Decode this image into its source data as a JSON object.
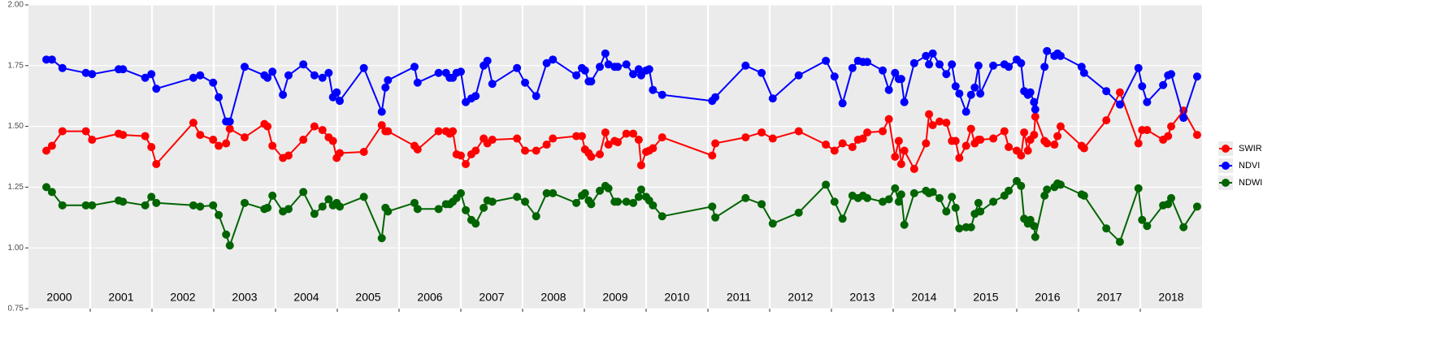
{
  "chart_data": {
    "type": "line",
    "x": [
      2000.29,
      2000.38,
      2000.55,
      2000.93,
      2001.03,
      2001.46,
      2001.53,
      2001.89,
      2001.99,
      2002.07,
      2002.67,
      2002.78,
      2002.99,
      2003.08,
      2003.2,
      2003.26,
      2003.5,
      2003.82,
      2003.87,
      2003.95,
      2004.12,
      2004.21,
      2004.45,
      2004.63,
      2004.76,
      2004.86,
      2004.93,
      2004.99,
      2005.04,
      2005.43,
      2005.72,
      2005.78,
      2005.82,
      2006.25,
      2006.3,
      2006.64,
      2006.76,
      2006.82,
      2006.87,
      2006.93,
      2007.0,
      2007.08,
      2007.17,
      2007.24,
      2007.37,
      2007.43,
      2007.51,
      2007.91,
      2008.04,
      2008.22,
      2008.39,
      2008.49,
      2008.87,
      2008.96,
      2009.01,
      2009.07,
      2009.11,
      2009.25,
      2009.34,
      2009.39,
      2009.49,
      2009.54,
      2009.68,
      2009.79,
      2009.88,
      2009.92,
      2010.0,
      2010.05,
      2010.11,
      2010.26,
      2011.07,
      2011.12,
      2011.61,
      2011.87,
      2012.05,
      2012.47,
      2012.91,
      2013.05,
      2013.18,
      2013.34,
      2013.43,
      2013.51,
      2013.58,
      2013.83,
      2013.93,
      2014.03,
      2014.09,
      2014.13,
      2014.18,
      2014.34,
      2014.53,
      2014.58,
      2014.64,
      2014.75,
      2014.86,
      2014.95,
      2015.01,
      2015.07,
      2015.18,
      2015.26,
      2015.32,
      2015.38,
      2015.41,
      2015.62,
      2015.8,
      2015.87,
      2016.0,
      2016.07,
      2016.12,
      2016.18,
      2016.22,
      2016.28,
      2016.3,
      2016.45,
      2016.49,
      2016.61,
      2016.66,
      2016.71,
      2017.05,
      2017.09,
      2017.45,
      2017.67,
      2017.97,
      2018.03,
      2018.11,
      2018.37,
      2018.45,
      2018.5,
      2018.7,
      2018.92
    ],
    "series": [
      {
        "name": "SWIR",
        "color": "#ff0000",
        "values": [
          1.4,
          1.42,
          1.48,
          1.48,
          1.445,
          1.47,
          1.465,
          1.46,
          1.415,
          1.345,
          1.515,
          1.465,
          1.445,
          1.42,
          1.43,
          1.49,
          1.455,
          1.51,
          1.5,
          1.42,
          1.37,
          1.38,
          1.445,
          1.5,
          1.485,
          1.455,
          1.44,
          1.37,
          1.39,
          1.395,
          1.505,
          1.48,
          1.48,
          1.42,
          1.405,
          1.48,
          1.48,
          1.47,
          1.48,
          1.385,
          1.38,
          1.345,
          1.385,
          1.4,
          1.45,
          1.43,
          1.445,
          1.45,
          1.4,
          1.4,
          1.425,
          1.45,
          1.46,
          1.46,
          1.405,
          1.39,
          1.375,
          1.385,
          1.475,
          1.425,
          1.44,
          1.435,
          1.47,
          1.47,
          1.445,
          1.34,
          1.395,
          1.4,
          1.41,
          1.455,
          1.38,
          1.43,
          1.455,
          1.475,
          1.45,
          1.48,
          1.425,
          1.4,
          1.43,
          1.415,
          1.445,
          1.45,
          1.475,
          1.48,
          1.53,
          1.375,
          1.44,
          1.345,
          1.4,
          1.325,
          1.43,
          1.55,
          1.505,
          1.52,
          1.515,
          1.44,
          1.44,
          1.37,
          1.42,
          1.49,
          1.43,
          1.445,
          1.445,
          1.45,
          1.48,
          1.415,
          1.4,
          1.38,
          1.475,
          1.4,
          1.445,
          1.465,
          1.54,
          1.44,
          1.43,
          1.425,
          1.46,
          1.5,
          1.42,
          1.41,
          1.525,
          1.64,
          1.43,
          1.485,
          1.485,
          1.445,
          1.46,
          1.5,
          1.565,
          1.465
        ]
      },
      {
        "name": "NDVI",
        "color": "#0000ff",
        "values": [
          1.775,
          1.775,
          1.74,
          1.72,
          1.715,
          1.735,
          1.735,
          1.7,
          1.715,
          1.655,
          1.7,
          1.71,
          1.68,
          1.62,
          1.52,
          1.52,
          1.745,
          1.71,
          1.7,
          1.725,
          1.63,
          1.71,
          1.755,
          1.71,
          1.7,
          1.72,
          1.62,
          1.64,
          1.605,
          1.74,
          1.56,
          1.66,
          1.69,
          1.745,
          1.68,
          1.72,
          1.72,
          1.7,
          1.7,
          1.72,
          1.725,
          1.6,
          1.615,
          1.625,
          1.75,
          1.77,
          1.675,
          1.74,
          1.68,
          1.625,
          1.76,
          1.775,
          1.71,
          1.74,
          1.73,
          1.685,
          1.685,
          1.745,
          1.8,
          1.755,
          1.745,
          1.745,
          1.755,
          1.715,
          1.735,
          1.71,
          1.73,
          1.735,
          1.65,
          1.63,
          1.605,
          1.62,
          1.75,
          1.72,
          1.615,
          1.71,
          1.77,
          1.705,
          1.595,
          1.74,
          1.77,
          1.765,
          1.765,
          1.73,
          1.65,
          1.72,
          1.695,
          1.695,
          1.6,
          1.76,
          1.79,
          1.755,
          1.8,
          1.755,
          1.715,
          1.755,
          1.665,
          1.635,
          1.56,
          1.63,
          1.66,
          1.75,
          1.635,
          1.75,
          1.755,
          1.745,
          1.775,
          1.76,
          1.645,
          1.63,
          1.64,
          1.6,
          1.57,
          1.745,
          1.81,
          1.79,
          1.8,
          1.79,
          1.745,
          1.72,
          1.645,
          1.59,
          1.74,
          1.665,
          1.6,
          1.67,
          1.71,
          1.715,
          1.535,
          1.705
        ]
      },
      {
        "name": "NDWI",
        "color": "#006400",
        "values": [
          1.25,
          1.23,
          1.175,
          1.175,
          1.175,
          1.195,
          1.19,
          1.175,
          1.21,
          1.185,
          1.175,
          1.17,
          1.175,
          1.135,
          1.055,
          1.01,
          1.185,
          1.16,
          1.165,
          1.215,
          1.15,
          1.16,
          1.23,
          1.14,
          1.17,
          1.2,
          1.175,
          1.185,
          1.17,
          1.21,
          1.04,
          1.165,
          1.15,
          1.185,
          1.16,
          1.16,
          1.18,
          1.18,
          1.19,
          1.205,
          1.225,
          1.155,
          1.115,
          1.1,
          1.165,
          1.195,
          1.19,
          1.21,
          1.19,
          1.13,
          1.225,
          1.225,
          1.185,
          1.215,
          1.225,
          1.195,
          1.18,
          1.235,
          1.255,
          1.245,
          1.19,
          1.19,
          1.19,
          1.185,
          1.21,
          1.24,
          1.21,
          1.195,
          1.175,
          1.13,
          1.17,
          1.125,
          1.205,
          1.18,
          1.1,
          1.145,
          1.26,
          1.19,
          1.12,
          1.215,
          1.205,
          1.215,
          1.205,
          1.19,
          1.2,
          1.245,
          1.19,
          1.22,
          1.095,
          1.225,
          1.235,
          1.225,
          1.23,
          1.205,
          1.15,
          1.21,
          1.165,
          1.08,
          1.085,
          1.085,
          1.14,
          1.185,
          1.15,
          1.19,
          1.215,
          1.235,
          1.275,
          1.255,
          1.12,
          1.1,
          1.115,
          1.09,
          1.045,
          1.215,
          1.24,
          1.25,
          1.265,
          1.26,
          1.22,
          1.215,
          1.08,
          1.025,
          1.245,
          1.115,
          1.09,
          1.175,
          1.18,
          1.205,
          1.085,
          1.17
        ]
      }
    ],
    "xlim": [
      2000,
      2019
    ],
    "xticks": [
      2001,
      2002,
      2003,
      2004,
      2005,
      2006,
      2007,
      2008,
      2009,
      2010,
      2011,
      2012,
      2013,
      2014,
      2015,
      2016,
      2017,
      2018
    ],
    "year_labels": [
      "2000",
      "2001",
      "2002",
      "2003",
      "2004",
      "2005",
      "2006",
      "2007",
      "2008",
      "2009",
      "2010",
      "2011",
      "2012",
      "2013",
      "2014",
      "2015",
      "2016",
      "2017",
      "2018"
    ],
    "ylim": [
      0.75,
      2.0
    ],
    "yticks": [
      {
        "value": 0.75,
        "label": "0.75"
      },
      {
        "value": 1.0,
        "label": "1.00"
      },
      {
        "value": 1.25,
        "label": "1.25"
      },
      {
        "value": 1.5,
        "label": "1.50"
      },
      {
        "value": 1.75,
        "label": "1.75"
      },
      {
        "value": 2.0,
        "label": "2.00"
      }
    ],
    "grid": true,
    "legend": "right"
  }
}
